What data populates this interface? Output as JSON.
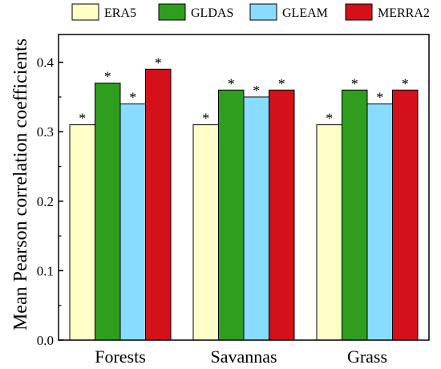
{
  "chart_data": {
    "type": "bar",
    "categories": [
      "Forests",
      "Savannas",
      "Grass"
    ],
    "series": [
      {
        "name": "ERA5",
        "color": "#ffffc8",
        "values": [
          0.31,
          0.31,
          0.31
        ],
        "markers": [
          "*",
          "*",
          "*"
        ]
      },
      {
        "name": "GLDAS",
        "color": "#2f9e1e",
        "values": [
          0.37,
          0.36,
          0.36
        ],
        "markers": [
          "*",
          "*",
          "*"
        ]
      },
      {
        "name": "GLEAM",
        "color": "#87dcff",
        "values": [
          0.34,
          0.35,
          0.34
        ],
        "markers": [
          "*",
          "*",
          "*"
        ]
      },
      {
        "name": "MERRA2",
        "color": "#d4101a",
        "values": [
          0.39,
          0.36,
          0.36
        ],
        "markers": [
          "*",
          "*",
          "*"
        ]
      }
    ],
    "title": "",
    "xlabel": "",
    "ylabel": "Mean Pearson correlation coefficients",
    "ylim": [
      0.0,
      0.44
    ],
    "yticks": [
      "0.0",
      "0.1",
      "0.2",
      "0.3",
      "0.4"
    ],
    "grid": false,
    "legend_position": "top"
  }
}
